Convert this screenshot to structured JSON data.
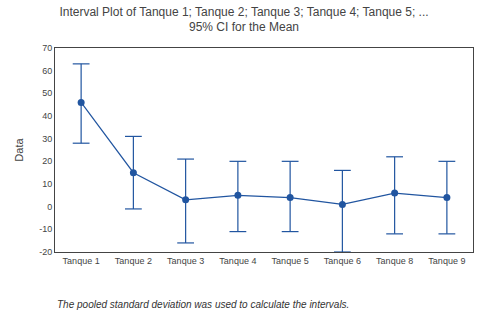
{
  "chart_data": {
    "type": "line",
    "title": "Interval Plot of Tanque 1; Tanque 2; Tanque 3; Tanque 4; Tanque 5; ...",
    "subtitle": "95% CI for the Mean",
    "ylabel": "Data",
    "categories": [
      "Tanque 1",
      "Tanque 2",
      "Tanque 3",
      "Tanque 4",
      "Tanque 5",
      "Tanque 6",
      "Tanque 8",
      "Tanque 9"
    ],
    "values": [
      46,
      15,
      3,
      5,
      4,
      1,
      6,
      4
    ],
    "ci_lower": [
      28,
      -1,
      -16,
      -11,
      -11,
      -20,
      -12,
      -12
    ],
    "ci_upper": [
      63,
      31,
      21,
      20,
      20,
      16,
      22,
      20
    ],
    "color": "#2155A0",
    "marker": "circle",
    "ylim": [
      -20,
      70
    ],
    "yticks": [
      -20,
      -10,
      0,
      10,
      20,
      30,
      40,
      50,
      60,
      70
    ],
    "grid": false,
    "annotations": [
      "The pooled standard deviation was used to calculate the intervals."
    ]
  }
}
